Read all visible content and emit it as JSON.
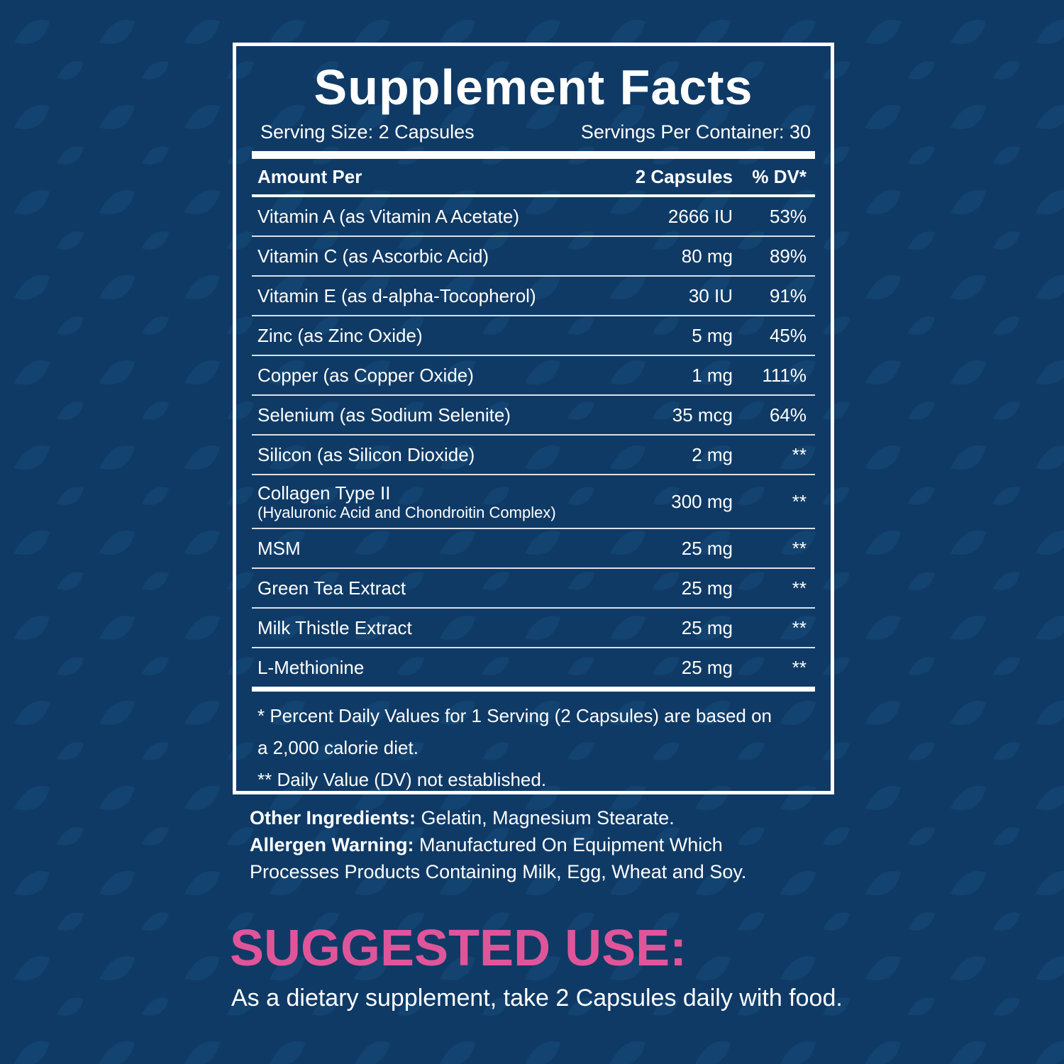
{
  "title": "Supplement Facts",
  "serving_size": "Serving Size: 2 Capsules",
  "servings_per_container": "Servings Per Container: 30",
  "header": {
    "amount_per": "Amount Per",
    "amount": "2 Capsules",
    "dv": "% DV*"
  },
  "rows": [
    {
      "name": "Vitamin A (as Vitamin A Acetate)",
      "amount": "2666 IU",
      "dv": "53%"
    },
    {
      "name": "Vitamin C (as Ascorbic Acid)",
      "amount": "80 mg",
      "dv": "89%"
    },
    {
      "name": "Vitamin E (as d-alpha-Tocopherol)",
      "amount": "30 IU",
      "dv": "91%"
    },
    {
      "name": "Zinc (as Zinc Oxide)",
      "amount": "5 mg",
      "dv": "45%"
    },
    {
      "name": "Copper (as Copper Oxide)",
      "amount": "1 mg",
      "dv": "111%"
    },
    {
      "name": "Selenium (as Sodium Selenite)",
      "amount": "35 mcg",
      "dv": "64%"
    },
    {
      "name": "Silicon (as Silicon Dioxide)",
      "amount": "2 mg",
      "dv": "**"
    },
    {
      "name": "Collagen Type II",
      "sub": "(Hyaluronic Acid and Chondroitin Complex)",
      "amount": "300 mg",
      "dv": "**"
    },
    {
      "name": "MSM",
      "amount": "25 mg",
      "dv": "**"
    },
    {
      "name": "Green Tea Extract",
      "amount": "25 mg",
      "dv": "**"
    },
    {
      "name": "Milk Thistle Extract",
      "amount": "25 mg",
      "dv": "**"
    },
    {
      "name": "L-Methionine",
      "amount": "25 mg",
      "dv": "**"
    }
  ],
  "footnotes": [
    "* Percent Daily Values for 1 Serving (2 Capsules) are based on a 2,000 calorie diet.",
    "** Daily Value (DV) not established."
  ],
  "other_ingredients": {
    "label": "Other Ingredients:",
    "text": "Gelatin, Magnesium Stearate."
  },
  "allergen_warning": {
    "label": "Allergen Warning:",
    "text": "Manufactured On Equipment Which Processes Products Containing Milk, Egg, Wheat and Soy."
  },
  "suggested_use": {
    "title": "SUGGESTED USE:",
    "text": "As a dietary supplement, take 2 Capsules daily with food."
  }
}
